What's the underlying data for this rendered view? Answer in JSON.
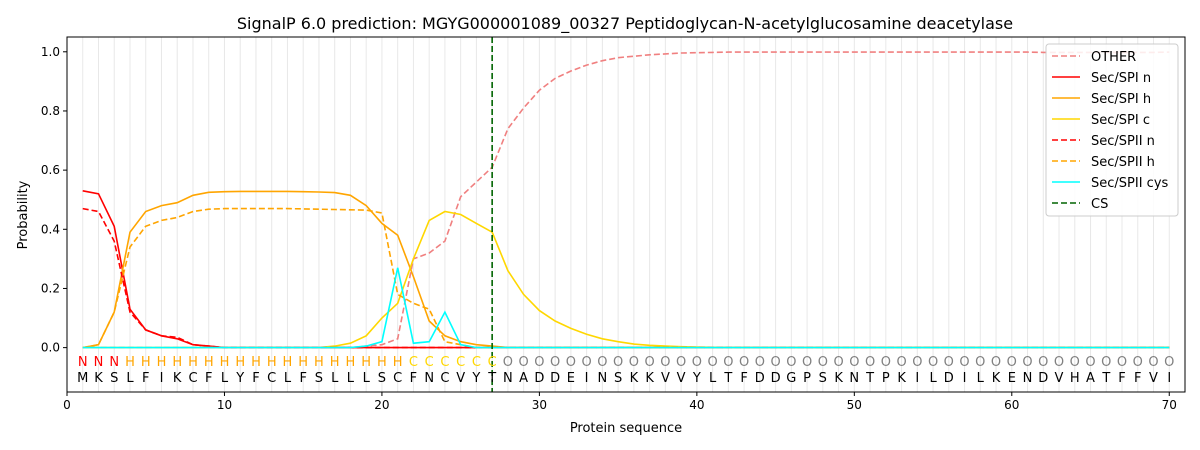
{
  "chart_data": {
    "type": "line",
    "title": "SignalP 6.0 prediction: MGYG000001089_00327 Peptidoglycan-N-acetylglucosamine deacetylase",
    "xlabel": "Protein sequence",
    "ylabel": "Probability",
    "xlim": [
      0,
      71
    ],
    "ylim": [
      -0.15,
      1.05
    ],
    "xticks": [
      0,
      10,
      20,
      30,
      40,
      50,
      60,
      70
    ],
    "yticks": [
      0.0,
      0.2,
      0.4,
      0.6,
      0.8,
      1.0
    ],
    "ytick_labels": [
      "0.0",
      "0.2",
      "0.4",
      "0.6",
      "0.8",
      "1.0"
    ],
    "legend_position": "top-right",
    "sequence": "MKSLFIKCFLYFCLFSLLLSCFNCVYTNADDEINSKKVVYLTFDDGPSKNTPKILDILKENDVHATFFVI",
    "labels": "NNNHHHHHHHHHHHHHHHHHHCCCCCCOOOOOOOOOOOOOOOOOOOOOOOOOOOOOOOOOOOOOOOOOOO",
    "label_colors": {
      "N": "#ff0000",
      "H": "#ffa500",
      "C": "#ffd700",
      "O": "#808080"
    },
    "cs_position": 27,
    "series": [
      {
        "name": "OTHER",
        "color": "#f08080",
        "dash": true,
        "values": [
          0,
          0,
          0,
          0,
          0,
          0,
          0,
          0,
          0,
          0,
          0,
          0,
          0,
          0,
          0,
          0,
          0,
          0,
          0.005,
          0.01,
          0.03,
          0.3,
          0.32,
          0.36,
          0.51,
          0.56,
          0.61,
          0.74,
          0.81,
          0.87,
          0.91,
          0.935,
          0.955,
          0.97,
          0.98,
          0.985,
          0.99,
          0.993,
          0.996,
          0.997,
          0.998,
          0.999,
          0.999,
          0.999,
          0.999,
          0.999,
          0.999,
          0.999,
          0.999,
          0.999,
          0.999,
          0.999,
          0.999,
          0.999,
          0.999,
          0.999,
          0.999,
          0.999,
          0.999,
          0.999,
          0.999,
          0.998,
          0.998,
          0.998,
          0.998,
          0.998,
          0.998,
          0.998,
          0.998,
          0.999
        ]
      },
      {
        "name": "Sec/SPI n",
        "color": "#ff0000",
        "dash": false,
        "values": [
          0.53,
          0.52,
          0.41,
          0.13,
          0.06,
          0.04,
          0.03,
          0.01,
          0.005,
          0,
          0,
          0,
          0,
          0,
          0,
          0,
          0,
          0,
          0,
          0,
          0,
          0,
          0,
          0,
          0,
          0,
          0,
          0,
          0,
          0,
          0,
          0,
          0,
          0,
          0,
          0,
          0,
          0,
          0,
          0,
          0,
          0,
          0,
          0,
          0,
          0,
          0,
          0,
          0,
          0,
          0,
          0,
          0,
          0,
          0,
          0,
          0,
          0,
          0,
          0,
          0,
          0,
          0,
          0,
          0,
          0,
          0,
          0,
          0,
          0
        ]
      },
      {
        "name": "Sec/SPI h",
        "color": "#ffa500",
        "dash": false,
        "values": [
          0,
          0.01,
          0.12,
          0.39,
          0.46,
          0.48,
          0.49,
          0.515,
          0.525,
          0.527,
          0.528,
          0.528,
          0.528,
          0.528,
          0.527,
          0.526,
          0.524,
          0.515,
          0.48,
          0.42,
          0.38,
          0.24,
          0.09,
          0.04,
          0.02,
          0.01,
          0.005,
          0,
          0,
          0,
          0,
          0,
          0,
          0,
          0,
          0,
          0,
          0,
          0,
          0,
          0,
          0,
          0,
          0,
          0,
          0,
          0,
          0,
          0,
          0,
          0,
          0,
          0,
          0,
          0,
          0,
          0,
          0,
          0,
          0,
          0,
          0,
          0,
          0,
          0,
          0,
          0,
          0,
          0,
          0
        ]
      },
      {
        "name": "Sec/SPI c",
        "color": "#ffd700",
        "dash": false,
        "values": [
          0,
          0,
          0,
          0,
          0,
          0,
          0,
          0,
          0,
          0,
          0,
          0,
          0,
          0,
          0,
          0,
          0.005,
          0.015,
          0.04,
          0.1,
          0.15,
          0.3,
          0.43,
          0.46,
          0.45,
          0.42,
          0.39,
          0.26,
          0.18,
          0.125,
          0.09,
          0.065,
          0.045,
          0.03,
          0.02,
          0.012,
          0.008,
          0.005,
          0.003,
          0.002,
          0.001,
          0,
          0,
          0,
          0,
          0,
          0,
          0,
          0,
          0,
          0,
          0,
          0,
          0,
          0,
          0,
          0,
          0,
          0,
          0,
          0,
          0,
          0,
          0,
          0,
          0,
          0,
          0,
          0,
          0
        ]
      },
      {
        "name": "Sec/SPII n",
        "color": "#ff0000",
        "dash": true,
        "values": [
          0.47,
          0.46,
          0.36,
          0.12,
          0.06,
          0.04,
          0.035,
          0.01,
          0.005,
          0,
          0,
          0,
          0,
          0,
          0,
          0,
          0,
          0,
          0,
          0,
          0,
          0,
          0,
          0,
          0,
          0,
          0,
          0,
          0,
          0,
          0,
          0,
          0,
          0,
          0,
          0,
          0,
          0,
          0,
          0,
          0,
          0,
          0,
          0,
          0,
          0,
          0,
          0,
          0,
          0,
          0,
          0,
          0,
          0,
          0,
          0,
          0,
          0,
          0,
          0,
          0,
          0,
          0,
          0,
          0,
          0,
          0,
          0,
          0,
          0
        ]
      },
      {
        "name": "Sec/SPII h",
        "color": "#ffa500",
        "dash": true,
        "values": [
          0,
          0.01,
          0.12,
          0.34,
          0.41,
          0.43,
          0.44,
          0.46,
          0.468,
          0.47,
          0.47,
          0.47,
          0.47,
          0.47,
          0.469,
          0.468,
          0.467,
          0.466,
          0.465,
          0.455,
          0.18,
          0.15,
          0.13,
          0.02,
          0.01,
          0,
          0,
          0,
          0,
          0,
          0,
          0,
          0,
          0,
          0,
          0,
          0,
          0,
          0,
          0,
          0,
          0,
          0,
          0,
          0,
          0,
          0,
          0,
          0,
          0,
          0,
          0,
          0,
          0,
          0,
          0,
          0,
          0,
          0,
          0,
          0,
          0,
          0,
          0,
          0,
          0,
          0,
          0,
          0,
          0
        ]
      },
      {
        "name": "Sec/SPII cys",
        "color": "#00ffff",
        "dash": false,
        "values": [
          0,
          0,
          0,
          0,
          0,
          0,
          0,
          0,
          0,
          0,
          0,
          0,
          0,
          0,
          0,
          0,
          0,
          0,
          0.005,
          0.02,
          0.27,
          0.015,
          0.02,
          0.12,
          0.01,
          0,
          0,
          0,
          0,
          0,
          0,
          0,
          0,
          0,
          0,
          0,
          0,
          0,
          0,
          0,
          0,
          0,
          0,
          0,
          0,
          0,
          0,
          0,
          0,
          0,
          0,
          0,
          0,
          0,
          0,
          0,
          0,
          0,
          0,
          0,
          0,
          0,
          0,
          0,
          0,
          0,
          0,
          0,
          0,
          0
        ]
      },
      {
        "name": "CS",
        "color": "#006400",
        "dash": true,
        "values": []
      }
    ]
  }
}
